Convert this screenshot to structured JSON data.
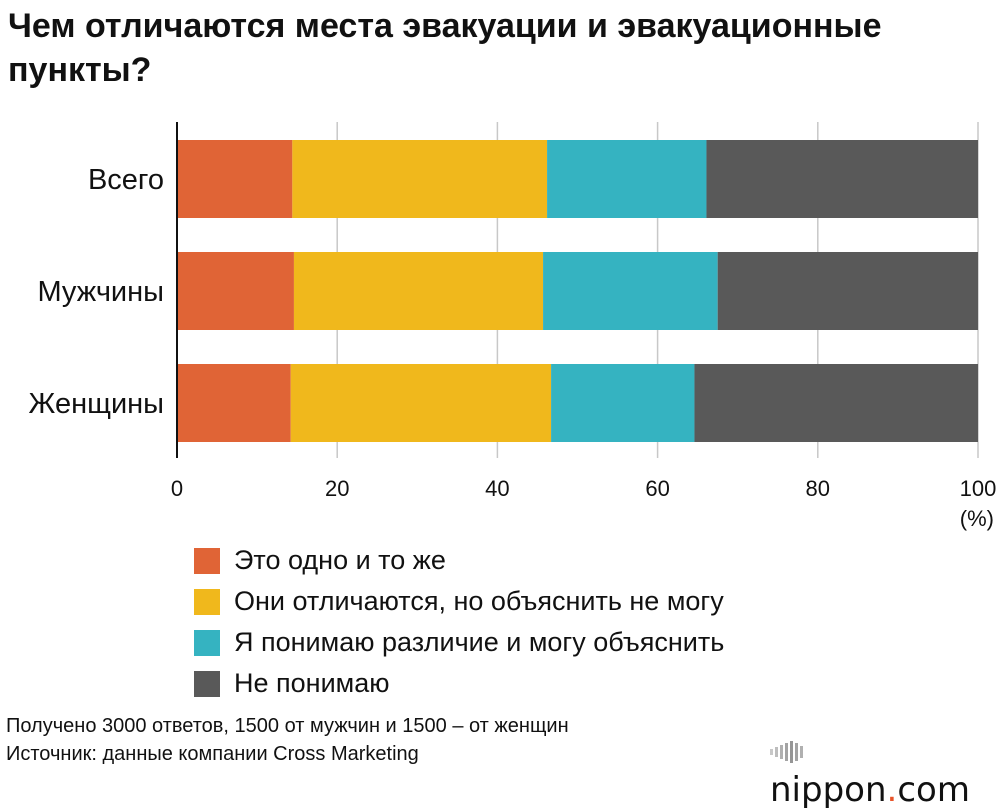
{
  "title": "Чем отличаются места эвакуации и эвакуационные пункты?",
  "chart_data": {
    "type": "bar",
    "orientation": "horizontal",
    "stacked": true,
    "categories": [
      "Всего",
      "Мужчины",
      "Женщины"
    ],
    "series": [
      {
        "name": "Это одно и то же",
        "color": "#e06436",
        "values": [
          14.4,
          14.6,
          14.2
        ]
      },
      {
        "name": "Они отличаются, но объяснить не могу",
        "color": "#f0b81c",
        "values": [
          31.8,
          31.1,
          32.5
        ]
      },
      {
        "name": "Я понимаю различие и могу объяснить",
        "color": "#35b3c1",
        "values": [
          19.9,
          21.8,
          17.9
        ]
      },
      {
        "name": "Не понимаю",
        "color": "#595959",
        "values": [
          33.9,
          32.5,
          35.4
        ]
      }
    ],
    "xlim": [
      0,
      100
    ],
    "xticks": [
      "0",
      "20",
      "40",
      "60",
      "80",
      "100"
    ],
    "xunit": "(%)",
    "grid": true,
    "legend_position": "bottom"
  },
  "footer": {
    "note": "Получено 3000 ответов, 1500 от мужчин и 1500 – от женщин",
    "source": "Источник: данные компании Cross Marketing"
  },
  "brand": {
    "name": "nippon",
    "dot": ".",
    "tld": "com"
  }
}
